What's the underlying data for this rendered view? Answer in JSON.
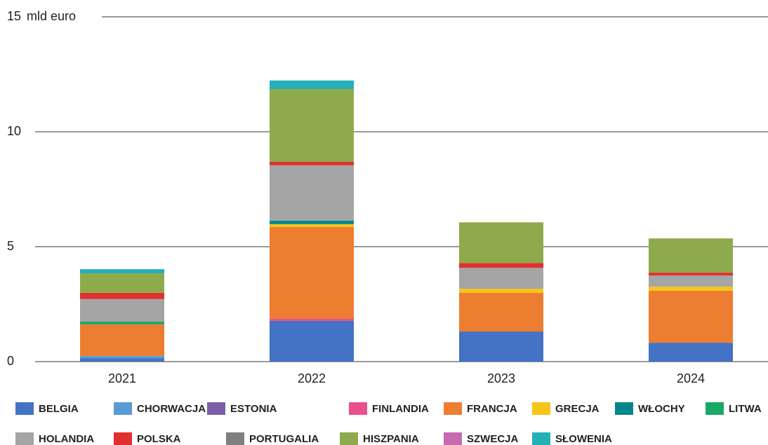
{
  "chart_data": {
    "type": "stacked_bar",
    "y_label": "mld euro",
    "categories": [
      "2021",
      "2022",
      "2023",
      "2024"
    ],
    "ylim": [
      0,
      15
    ],
    "yticks": [
      0,
      5,
      10,
      15
    ],
    "grid": true,
    "series": [
      {
        "name": "BELGIA",
        "color": "#4472c4",
        "values": [
          0.15,
          1.77,
          1.31,
          0.82
        ]
      },
      {
        "name": "CHORWACJA",
        "color": "#5b9bd5",
        "values": [
          0.1,
          0,
          0,
          0
        ]
      },
      {
        "name": "ESTONIA",
        "color": "#7b5ea7",
        "values": [
          0,
          0,
          0,
          0
        ]
      },
      {
        "name": "FINLANDIA",
        "color": "#e8508e",
        "values": [
          0,
          0.09,
          0,
          0
        ]
      },
      {
        "name": "FRANCJA",
        "color": "#ed7d31",
        "values": [
          1.37,
          4.0,
          1.68,
          2.26
        ]
      },
      {
        "name": "GRECJA",
        "color": "#f5c518",
        "values": [
          0,
          0.12,
          0.18,
          0.18
        ]
      },
      {
        "name": "WŁOCHY",
        "color": "#00868b",
        "values": [
          0,
          0.15,
          0,
          0
        ]
      },
      {
        "name": "LITWA",
        "color": "#1aa866",
        "values": [
          0.12,
          0,
          0,
          0
        ]
      },
      {
        "name": "HOLANDIA",
        "color": "#a5a5a5",
        "values": [
          0.98,
          2.41,
          0.91,
          0.49
        ]
      },
      {
        "name": "POLSKA",
        "color": "#e03030",
        "values": [
          0.27,
          0.15,
          0.21,
          0.12
        ]
      },
      {
        "name": "PORTUGALIA",
        "color": "#808080",
        "values": [
          0,
          0,
          0,
          0
        ]
      },
      {
        "name": "HISZPANIA",
        "color": "#8faa4c",
        "values": [
          0.85,
          3.17,
          1.77,
          1.49
        ]
      },
      {
        "name": "SZWECJA",
        "color": "#c86ab0",
        "values": [
          0,
          0,
          0,
          0
        ]
      },
      {
        "name": "SŁOWENIA",
        "color": "#25b0b8",
        "values": [
          0.18,
          0.37,
          0,
          0
        ]
      }
    ]
  }
}
